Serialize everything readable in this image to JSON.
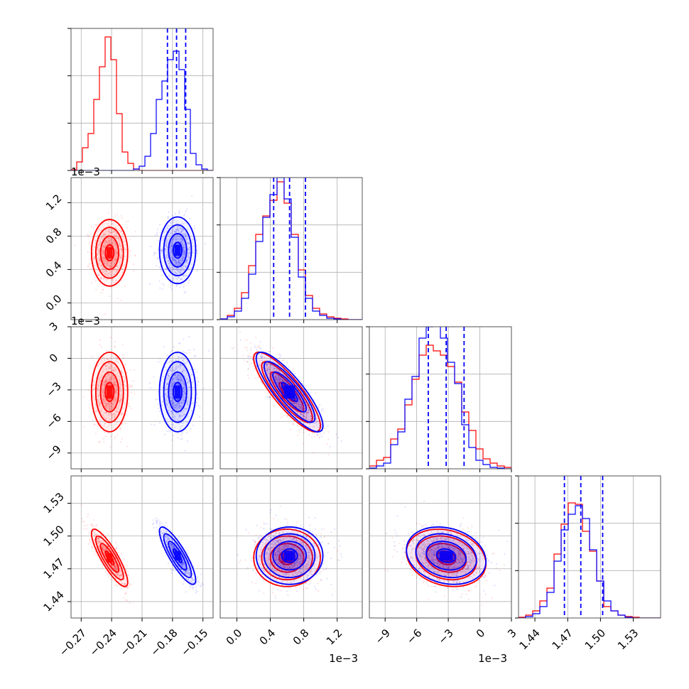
{
  "chart_data": {
    "type": "corner",
    "colors": {
      "series_a": "#ff0000",
      "series_b": "#0000ff",
      "grid": "#b0b0b0"
    },
    "grid": true,
    "params": [
      {
        "range": [
          -0.28,
          -0.14
        ],
        "ticks": [
          -0.27,
          -0.24,
          -0.21,
          -0.18,
          -0.15
        ],
        "tick_labels": [
          "−0.27",
          "−0.24",
          "−0.21",
          "−0.18",
          "−0.15"
        ],
        "offset_label": ""
      },
      {
        "range": [
          -0.0002,
          0.0015
        ],
        "ticks": [
          0.0,
          0.0004,
          0.0008,
          0.0012
        ],
        "tick_labels": [
          "0.0",
          "0.4",
          "0.8",
          "1.2"
        ],
        "offset_label": "1e−3"
      },
      {
        "range": [
          -0.0105,
          0.003
        ],
        "ticks": [
          -0.009,
          -0.006,
          -0.003,
          0.0,
          0.003
        ],
        "tick_labels": [
          "−9",
          "−6",
          "−3",
          "0",
          "3"
        ],
        "offset_label": "1e−3"
      },
      {
        "range": [
          1.425,
          1.555
        ],
        "ticks": [
          1.44,
          1.47,
          1.5,
          1.53
        ],
        "tick_labels": [
          "1.44",
          "1.47",
          "1.50",
          "1.53"
        ],
        "offset_label": ""
      }
    ],
    "series": [
      {
        "means": [
          -0.242,
          0.0006,
          -0.0032,
          1.48
        ],
        "sigmas": [
          0.0085,
          0.00019,
          0.0018,
          0.0125
        ],
        "corr": [
          [
            0,
            3,
            -0.85
          ],
          [
            1,
            2,
            -0.85
          ],
          [
            2,
            3,
            -0.2
          ]
        ]
      },
      {
        "means": [
          -0.175,
          0.00063,
          -0.0032,
          1.482
        ],
        "sigmas": [
          0.0085,
          0.00019,
          0.0018,
          0.0125
        ],
        "corr": [
          [
            0,
            3,
            -0.85
          ],
          [
            1,
            2,
            -0.85
          ],
          [
            2,
            3,
            -0.2
          ]
        ]
      }
    ],
    "quantile_lines": [
      [
        -0.185,
        -0.176,
        -0.167
      ],
      [
        0.00044,
        0.00063,
        0.00082
      ],
      [
        -0.0049,
        -0.0032,
        -0.0015
      ],
      [
        1.467,
        1.482,
        1.502
      ]
    ],
    "histograms": [
      {
        "a": [
          0.005,
          0.06,
          0.16,
          0.26,
          0.5,
          0.73,
          0.94,
          0.78,
          0.4,
          0.13,
          0.05,
          0.01,
          0,
          0,
          0,
          0,
          0,
          0,
          0,
          0,
          0,
          0,
          0,
          0,
          0
        ],
        "b": [
          0,
          0,
          0,
          0,
          0,
          0,
          0,
          0,
          0,
          0,
          0,
          0.01,
          0.03,
          0.1,
          0.26,
          0.5,
          0.63,
          0.78,
          0.84,
          0.71,
          0.43,
          0.12,
          0.04,
          0.01,
          0
        ]
      },
      {
        "a": [
          0.005,
          0.03,
          0.08,
          0.19,
          0.38,
          0.6,
          0.73,
          0.84,
          0.97,
          0.82,
          0.6,
          0.35,
          0.17,
          0.08,
          0.04,
          0.02,
          0.01,
          0.005,
          0,
          0
        ],
        "b": [
          0.005,
          0.02,
          0.06,
          0.15,
          0.32,
          0.55,
          0.72,
          0.88,
          1.0,
          0.85,
          0.58,
          0.3,
          0.15,
          0.06,
          0.03,
          0.01,
          0.005,
          0,
          0,
          0
        ]
      },
      {
        "a": [
          0.02,
          0.06,
          0.08,
          0.21,
          0.28,
          0.45,
          0.63,
          0.8,
          0.87,
          0.83,
          0.8,
          0.72,
          0.61,
          0.4,
          0.27,
          0.14,
          0.07,
          0.04,
          0.02,
          0.01
        ],
        "b": [
          0.005,
          0.02,
          0.04,
          0.17,
          0.26,
          0.49,
          0.65,
          0.92,
          1.0,
          1.05,
          0.92,
          0.75,
          0.6,
          0.31,
          0.15,
          0.06,
          0.03,
          0.01,
          0.005,
          0
        ]
      },
      {
        "a": [
          0.005,
          0.02,
          0.05,
          0.12,
          0.21,
          0.45,
          0.66,
          0.81,
          0.8,
          0.61,
          0.47,
          0.26,
          0.08,
          0.05,
          0.02,
          0.01,
          0.005,
          0,
          0,
          0
        ],
        "b": [
          0,
          0.01,
          0.03,
          0.08,
          0.18,
          0.4,
          0.62,
          0.73,
          0.79,
          0.7,
          0.48,
          0.26,
          0.12,
          0.05,
          0.02,
          0.005,
          0,
          0,
          0,
          0
        ]
      }
    ]
  }
}
